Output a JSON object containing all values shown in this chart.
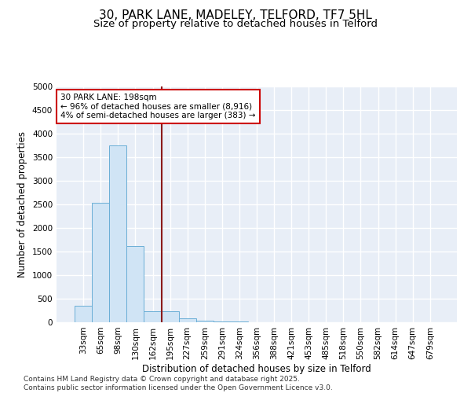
{
  "title_line1": "30, PARK LANE, MADELEY, TELFORD, TF7 5HL",
  "title_line2": "Size of property relative to detached houses in Telford",
  "xlabel": "Distribution of detached houses by size in Telford",
  "ylabel": "Number of detached properties",
  "categories": [
    "33sqm",
    "65sqm",
    "98sqm",
    "130sqm",
    "162sqm",
    "195sqm",
    "227sqm",
    "259sqm",
    "291sqm",
    "324sqm",
    "356sqm",
    "388sqm",
    "421sqm",
    "453sqm",
    "485sqm",
    "518sqm",
    "550sqm",
    "582sqm",
    "614sqm",
    "647sqm",
    "679sqm"
  ],
  "values": [
    350,
    2530,
    3750,
    1620,
    230,
    230,
    80,
    40,
    20,
    10,
    5,
    0,
    0,
    0,
    0,
    0,
    0,
    0,
    0,
    0,
    0
  ],
  "bar_color": "#d0e4f5",
  "bar_edge_color": "#6aaed6",
  "vline_index": 5,
  "vline_color": "#8b1a1a",
  "annotation_text": "30 PARK LANE: 198sqm\n← 96% of detached houses are smaller (8,916)\n4% of semi-detached houses are larger (383) →",
  "annotation_box_facecolor": "white",
  "annotation_box_edgecolor": "#cc0000",
  "ylim": [
    0,
    5000
  ],
  "yticks": [
    0,
    500,
    1000,
    1500,
    2000,
    2500,
    3000,
    3500,
    4000,
    4500,
    5000
  ],
  "background_color": "#e8eef7",
  "grid_color": "white",
  "footer_text": "Contains HM Land Registry data © Crown copyright and database right 2025.\nContains public sector information licensed under the Open Government Licence v3.0.",
  "title_fontsize": 11,
  "subtitle_fontsize": 9.5,
  "axis_label_fontsize": 8.5,
  "tick_fontsize": 7.5,
  "annotation_fontsize": 7.5,
  "footer_fontsize": 6.5
}
